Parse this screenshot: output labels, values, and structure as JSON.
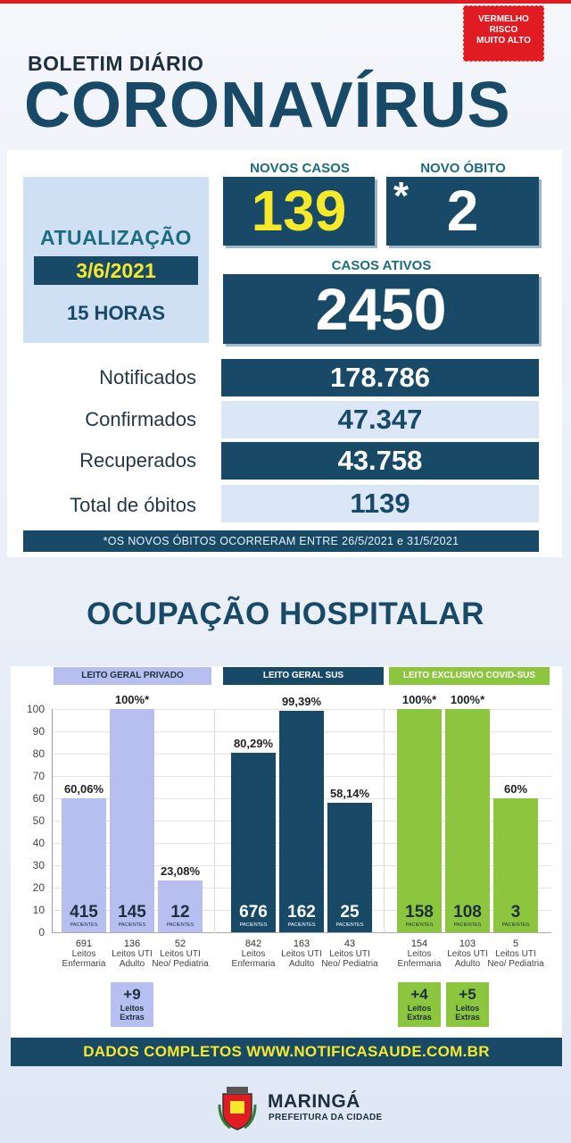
{
  "risk_badge": [
    "VERMELHO",
    "RISCO",
    "MUITO ALTO"
  ],
  "header": {
    "subtitle": "BOLETIM DIÁRIO",
    "title": "CORONAVÍRUS"
  },
  "update": {
    "label": "ATUALIZAÇÃO",
    "date": "3/6/2021",
    "hour": "15 HORAS"
  },
  "new_cases": {
    "label": "NOVOS CASOS",
    "value": "139"
  },
  "new_deaths": {
    "label": "NOVO ÓBITO",
    "marker": "*",
    "value": "2"
  },
  "active_cases": {
    "label": "CASOS ATIVOS",
    "value": "2450"
  },
  "stats": [
    {
      "label": "Notificados",
      "value": "178.786"
    },
    {
      "label": "Confirmados",
      "value": "47.347"
    },
    {
      "label": "Recuperados",
      "value": "43.758"
    },
    {
      "label": "Total de óbitos",
      "value": "1139"
    }
  ],
  "note": "*OS NOVOS ÓBITOS OCORRERAM ENTRE 26/5/2021 e 31/5/2021",
  "hospital": {
    "title": "OCUPAÇÃO HOSPITALAR",
    "yticks": [
      "100",
      "90",
      "80",
      "70",
      "60",
      "50",
      "40",
      "30",
      "20",
      "10",
      "0"
    ],
    "ymax": 100,
    "patients_label": "PACIENTES",
    "groups": [
      {
        "title": "LEITO GERAL PRIVADO",
        "colors": {
          "header": "#b7bff0",
          "header_text": "#1d2f3c",
          "bar": "#b7bff0",
          "text": "#1d2f3c"
        },
        "bars": [
          {
            "pct": 60.06,
            "pct_label": "60,06%",
            "patients": "415",
            "beds": "691",
            "bed_type": "Leitos Enfermaria"
          },
          {
            "pct": 100,
            "pct_label": "100%*",
            "patients": "145",
            "beds": "136",
            "bed_type": "Leitos UTI Adulto"
          },
          {
            "pct": 23.08,
            "pct_label": "23,08%",
            "patients": "12",
            "beds": "52",
            "bed_type": "Leitos UTI Neo/ Pediatria"
          }
        ],
        "extras": [
          {
            "count": "+9",
            "label": "Leitos Extras",
            "bar_index": 1
          }
        ]
      },
      {
        "title": "LEITO GERAL SUS",
        "colors": {
          "header": "#184a68",
          "header_text": "#ffffff",
          "bar": "#184a68",
          "text": "#ffffff"
        },
        "bars": [
          {
            "pct": 80.29,
            "pct_label": "80,29%",
            "patients": "676",
            "beds": "842",
            "bed_type": "Leitos Enfermaria"
          },
          {
            "pct": 99.39,
            "pct_label": "99,39%",
            "patients": "162",
            "beds": "163",
            "bed_type": "Leitos UTI Adulto"
          },
          {
            "pct": 58.14,
            "pct_label": "58,14%",
            "patients": "25",
            "beds": "43",
            "bed_type": "Leitos UTI Neo/ Pediatria"
          }
        ],
        "extras": []
      },
      {
        "title": "LEITO EXCLUSIVO COVID-SUS",
        "colors": {
          "header": "#8cc63f",
          "header_text": "#ffffff",
          "bar": "#8cc63f",
          "text": "#1d2f3c"
        },
        "bars": [
          {
            "pct": 100,
            "pct_label": "100%*",
            "patients": "158",
            "beds": "154",
            "bed_type": "Leitos Enfermaria"
          },
          {
            "pct": 100,
            "pct_label": "100%*",
            "patients": "108",
            "beds": "103",
            "bed_type": "Leitos UTI Adulto"
          },
          {
            "pct": 60,
            "pct_label": "60%",
            "patients": "3",
            "beds": "5",
            "bed_type": "Leitos UTI Neo/ Pediatria"
          }
        ],
        "extras": [
          {
            "count": "+4",
            "label": "Leitos Extras",
            "bar_index": 0
          },
          {
            "count": "+5",
            "label": "Leitos Extras",
            "bar_index": 1
          }
        ]
      }
    ]
  },
  "footer": "DADOS COMPLETOS  WWW.NOTIFICASAUDE.COM.BR",
  "city": {
    "name": "MARINGÁ",
    "sub": "PREFEITURA DA CIDADE"
  }
}
